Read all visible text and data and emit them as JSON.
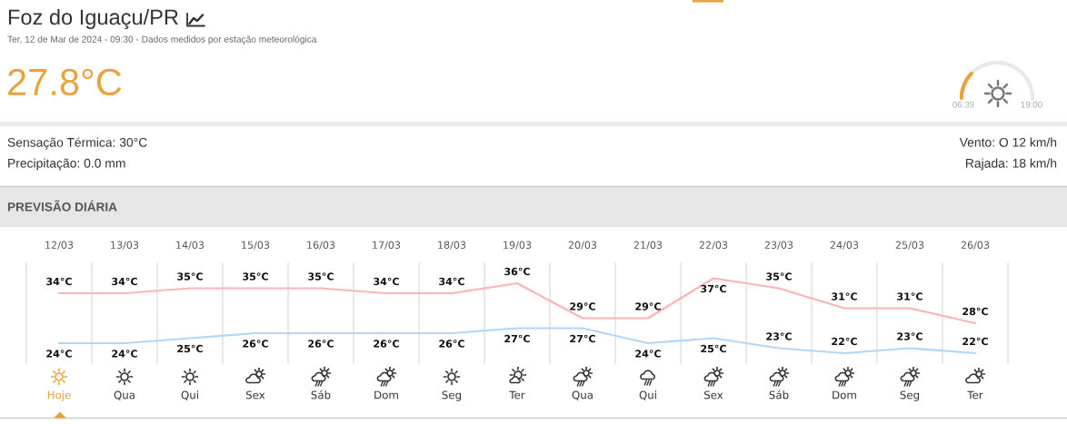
{
  "chart_data": {
    "type": "line",
    "title": "Foz do Iguaçu/PR",
    "subtitle": "Ter, 12 de Mar de 2024 - 09:30 - Dados medidos por estação meteorológica",
    "categories": [
      "12/03",
      "13/03",
      "14/03",
      "15/03",
      "16/03",
      "17/03",
      "18/03",
      "19/03",
      "20/03",
      "21/03",
      "22/03",
      "23/03",
      "24/03",
      "25/03",
      "26/03"
    ],
    "series": [
      {
        "color": "#ffb3b7",
        "values": [
          34,
          34,
          35,
          35,
          35,
          34,
          34,
          36,
          29,
          29,
          37,
          35,
          31,
          31,
          28
        ],
        "value_labels": [
          "34°C",
          "34°C",
          "35°C",
          "35°C",
          "35°C",
          "34°C",
          "34°C",
          "36°C",
          "29°C",
          "29°C",
          "37°C",
          "35°C",
          "31°C",
          "31°C",
          "28°C"
        ]
      },
      {
        "color": "#b0d6fb",
        "values": [
          24,
          24,
          25,
          26,
          26,
          26,
          26,
          27,
          27,
          24,
          25,
          23,
          22,
          23,
          22
        ],
        "value_labels": [
          "24°C",
          "24°C",
          "25°C",
          "26°C",
          "26°C",
          "26°C",
          "26°C",
          "27°C",
          "27°C",
          "24°C",
          "25°C",
          "23°C",
          "22°C",
          "23°C",
          "22°C"
        ]
      }
    ],
    "ylim": [
      20,
      40
    ],
    "tick_labels": "x",
    "grid": "x",
    "annotations": [
      "27.8°C",
      "06:39",
      "19:00",
      "Sensação Térmica: 30°C",
      "Precipitação: 0.0 mm",
      "Vento: O 12 km/h",
      "Rajada: 18 km/h",
      "PREVISÃO DIÁRIA",
      "Hoje",
      "Qua",
      "Qui",
      "Sex",
      "Sáb",
      "Dom",
      "Seg",
      "Ter",
      "Qua",
      "Qui",
      "Sex",
      "Sáb",
      "Dom",
      "Seg",
      "Ter"
    ]
  }
}
